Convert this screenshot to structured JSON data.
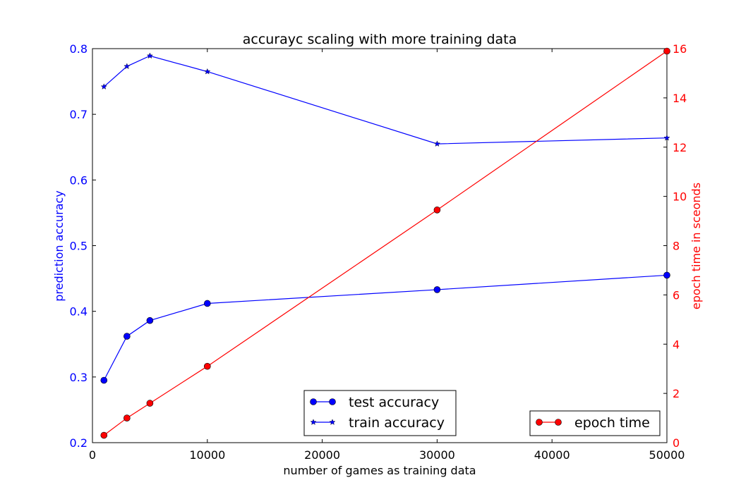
{
  "chart_data": {
    "type": "line",
    "title": "accurayc scaling with more training data",
    "xlabel": "number of games as training data",
    "ylabel_left": "prediction accuracy",
    "ylabel_right": "epoch time in sceonds",
    "xlim": [
      0,
      50000
    ],
    "ylim_left": [
      0.2,
      0.8
    ],
    "ylim_right": [
      0,
      16
    ],
    "x_ticks": [
      "0",
      "10000",
      "20000",
      "30000",
      "40000",
      "50000"
    ],
    "y_left_ticks": [
      "0.2",
      "0.3",
      "0.4",
      "0.5",
      "0.6",
      "0.7",
      "0.8"
    ],
    "y_right_ticks": [
      "0",
      "2",
      "4",
      "6",
      "8",
      "10",
      "12",
      "14",
      "16"
    ],
    "x": [
      1000,
      3000,
      5000,
      10000,
      30000,
      50000
    ],
    "series": [
      {
        "name": "test accuracy",
        "axis": "left",
        "marker": "circle",
        "color": "#0000ff",
        "values": [
          0.295,
          0.362,
          0.386,
          0.412,
          0.433,
          0.455
        ]
      },
      {
        "name": "train accuracy",
        "axis": "left",
        "marker": "star",
        "color": "#0000ff",
        "values": [
          0.742,
          0.773,
          0.789,
          0.765,
          0.655,
          0.664
        ]
      },
      {
        "name": "epoch time",
        "axis": "right",
        "marker": "circle",
        "color": "#ff0000",
        "values": [
          0.3,
          1.0,
          1.6,
          3.1,
          9.45,
          15.9
        ]
      }
    ],
    "legend_left": [
      "test accuracy",
      "train accuracy"
    ],
    "legend_right": [
      "epoch time"
    ],
    "legend_left_placement": "lower-center",
    "legend_right_placement": "lower-right",
    "grid": false
  }
}
